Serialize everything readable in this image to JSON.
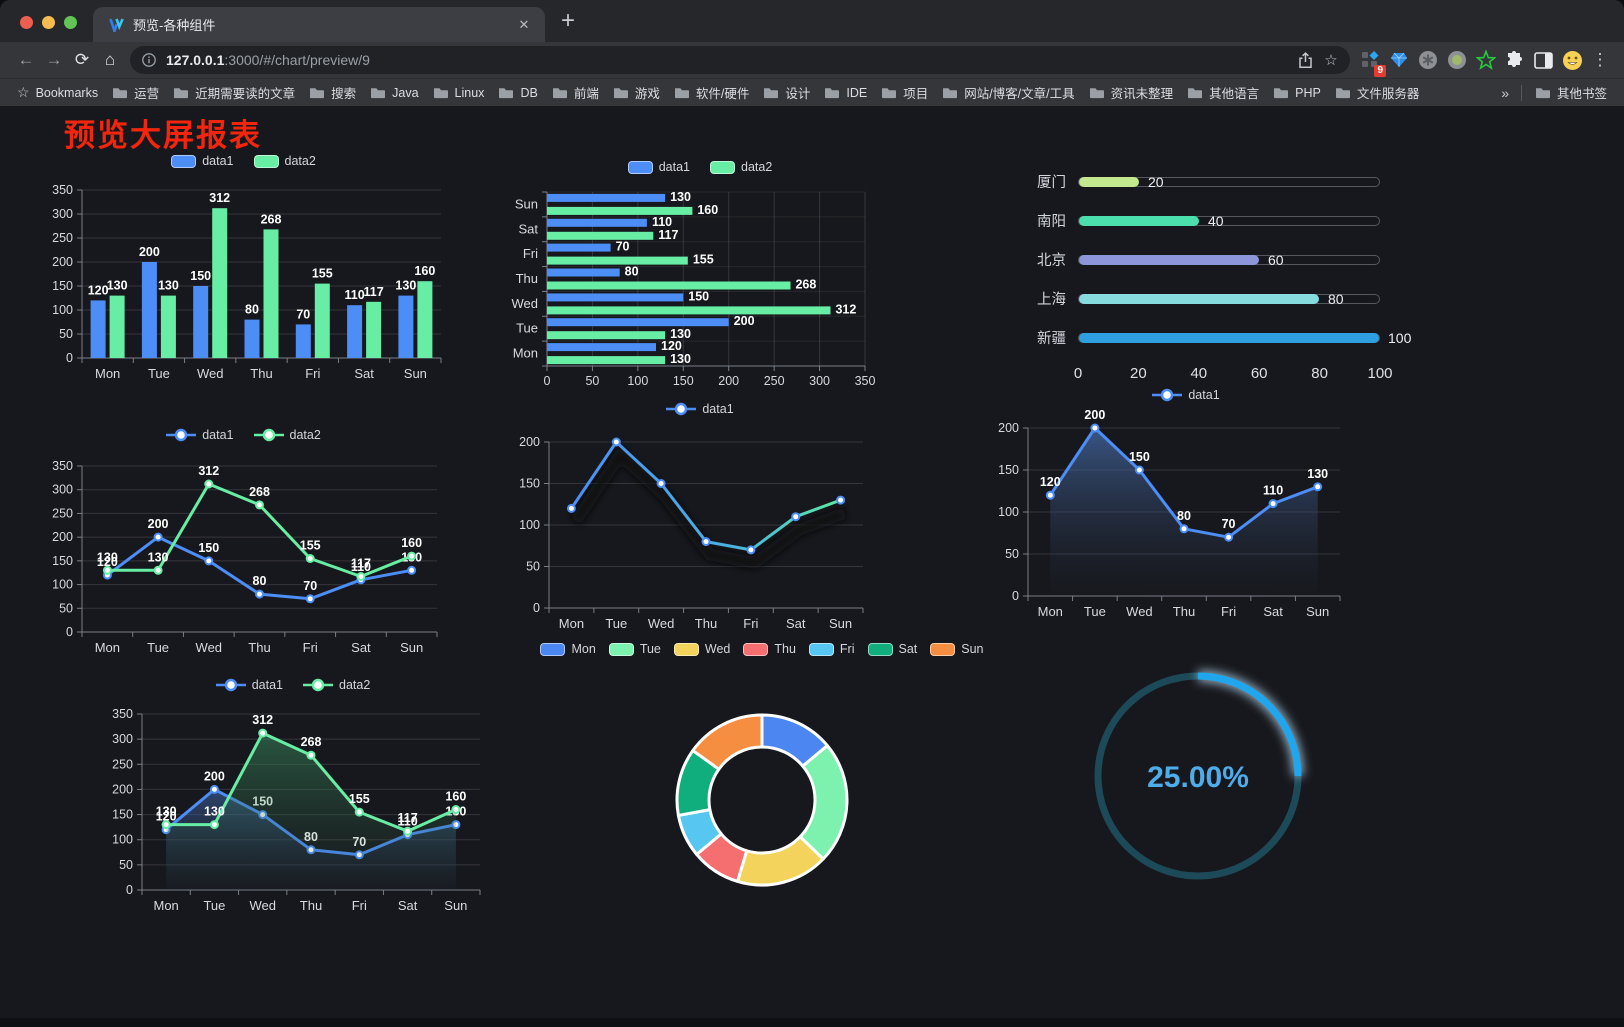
{
  "window": {
    "tab_title": "预览-各种组件",
    "url_host": "127.0.0.1",
    "url_rest": ":3000/#/chart/preview/9",
    "ext_badge": "9",
    "glyphs": {
      "back": "←",
      "forward": "→",
      "reload": "⟳",
      "home": "⌂",
      "close_tab": "✕",
      "new_tab": "+",
      "star": "☆",
      "menu": "⋮",
      "overflow": "»"
    },
    "bookmarks_label": "Bookmarks",
    "bookmarks": [
      "运营",
      "近期需要读的文章",
      "搜索",
      "Java",
      "Linux",
      "DB",
      "前端",
      "游戏",
      "软件/硬件",
      "设计",
      "IDE",
      "项目",
      "网站/博客/文章/工具",
      "资讯未整理",
      "其他语言",
      "PHP",
      "文件服务器"
    ],
    "other_bookmarks": "其他书签"
  },
  "page": {
    "title": "预览大屏报表",
    "title_color": "#f3260d"
  },
  "chart_data": [
    {
      "id": "c1",
      "type": "bar",
      "orientation": "vertical",
      "categories": [
        "Mon",
        "Tue",
        "Wed",
        "Thu",
        "Fri",
        "Sat",
        "Sun"
      ],
      "series": [
        {
          "name": "data1",
          "color": "#4C8DF6",
          "values": [
            120,
            200,
            150,
            80,
            70,
            110,
            130
          ]
        },
        {
          "name": "data2",
          "color": "#67EDA4",
          "values": [
            130,
            130,
            312,
            268,
            155,
            117,
            160
          ]
        }
      ],
      "ylim": [
        0,
        350
      ],
      "yticks": [
        0,
        50,
        100,
        150,
        200,
        250,
        300,
        350
      ],
      "value_labels": true,
      "legend_position": "top",
      "grid": true
    },
    {
      "id": "c2",
      "type": "bar",
      "orientation": "horizontal",
      "categories": [
        "Mon",
        "Tue",
        "Wed",
        "Thu",
        "Fri",
        "Sat",
        "Sun"
      ],
      "category_order_top_to_bottom": [
        "Sun",
        "Sat",
        "Fri",
        "Thu",
        "Wed",
        "Tue",
        "Mon"
      ],
      "series": [
        {
          "name": "data1",
          "color": "#4C8DF6",
          "values": [
            120,
            200,
            150,
            80,
            70,
            110,
            130
          ]
        },
        {
          "name": "data2",
          "color": "#67EDA4",
          "values": [
            130,
            130,
            312,
            268,
            155,
            117,
            160
          ]
        }
      ],
      "xlim": [
        0,
        350
      ],
      "xticks": [
        0,
        50,
        100,
        150,
        200,
        250,
        300,
        350
      ],
      "value_labels": true,
      "legend_position": "top",
      "grid": true
    },
    {
      "id": "c3",
      "type": "bar",
      "subtype": "progress-list",
      "max": 100,
      "xticks": [
        0,
        20,
        40,
        60,
        80,
        100
      ],
      "items": [
        {
          "label": "厦门",
          "value": 20,
          "color": "#C3E88D"
        },
        {
          "label": "南阳",
          "value": 40,
          "color": "#4BDFAD"
        },
        {
          "label": "北京",
          "value": 60,
          "color": "#8E96DB"
        },
        {
          "label": "上海",
          "value": 80,
          "color": "#85DBDE"
        },
        {
          "label": "新疆",
          "value": 100,
          "color": "#2E9FE0"
        }
      ]
    },
    {
      "id": "c4",
      "type": "line",
      "categories": [
        "Mon",
        "Tue",
        "Wed",
        "Thu",
        "Fri",
        "Sat",
        "Sun"
      ],
      "series": [
        {
          "name": "data1",
          "color": "#4C8DF6",
          "values": [
            120,
            200,
            150,
            80,
            70,
            110,
            130
          ]
        },
        {
          "name": "data2",
          "color": "#67EDA4",
          "values": [
            130,
            130,
            312,
            268,
            155,
            117,
            160
          ]
        }
      ],
      "ylim": [
        0,
        350
      ],
      "yticks": [
        0,
        50,
        100,
        150,
        200,
        250,
        300,
        350
      ],
      "value_labels": true,
      "legend_position": "top",
      "grid": true
    },
    {
      "id": "c5",
      "type": "line",
      "categories": [
        "Mon",
        "Tue",
        "Wed",
        "Thu",
        "Fri",
        "Sat",
        "Sun"
      ],
      "series": [
        {
          "name": "data1",
          "color": "#4C8DF6",
          "gradient": [
            "#4C8DF6",
            "#49B3E0",
            "#5CE9A5"
          ],
          "values": [
            120,
            200,
            150,
            80,
            70,
            110,
            130
          ]
        }
      ],
      "ylim": [
        0,
        200
      ],
      "yticks": [
        0,
        50,
        100,
        150,
        200
      ],
      "value_labels": false,
      "shadow": true,
      "legend_position": "top",
      "grid": true
    },
    {
      "id": "c6",
      "type": "area",
      "categories": [
        "Mon",
        "Tue",
        "Wed",
        "Thu",
        "Fri",
        "Sat",
        "Sun"
      ],
      "series": [
        {
          "name": "data1",
          "color": "#4C8DF6",
          "fill_from": "rgba(76,120,190,0.65)",
          "fill_to": "rgba(40,50,70,0.03)",
          "values": [
            120,
            200,
            150,
            80,
            70,
            110,
            130
          ]
        }
      ],
      "ylim": [
        0,
        200
      ],
      "yticks": [
        0,
        50,
        100,
        150,
        200
      ],
      "value_labels": true,
      "legend_position": "top",
      "grid": true
    },
    {
      "id": "c7",
      "type": "area",
      "categories": [
        "Mon",
        "Tue",
        "Wed",
        "Thu",
        "Fri",
        "Sat",
        "Sun"
      ],
      "series": [
        {
          "name": "data1",
          "color": "#4C8DF6",
          "fill_from": "rgba(70,115,190,0.50)",
          "fill_to": "rgba(40,60,100,0.04)",
          "values": [
            120,
            200,
            150,
            80,
            70,
            110,
            130
          ]
        },
        {
          "name": "data2",
          "color": "#67EDA4",
          "fill_from": "rgba(60,150,100,0.50)",
          "fill_to": "rgba(40,80,60,0.04)",
          "values": [
            130,
            130,
            312,
            268,
            155,
            117,
            160
          ]
        }
      ],
      "ylim": [
        0,
        350
      ],
      "yticks": [
        0,
        50,
        100,
        150,
        200,
        250,
        300,
        350
      ],
      "value_labels": true,
      "legend_position": "top",
      "grid": true
    },
    {
      "id": "c8",
      "type": "pie",
      "subtype": "donut",
      "legend_position": "top",
      "slices": [
        {
          "label": "Mon",
          "value": 120,
          "color": "#4C86F0"
        },
        {
          "label": "Tue",
          "value": 200,
          "color": "#7DF2AF"
        },
        {
          "label": "Wed",
          "value": 150,
          "color": "#F3D35B"
        },
        {
          "label": "Thu",
          "value": 80,
          "color": "#F56E70"
        },
        {
          "label": "Fri",
          "value": 70,
          "color": "#57C7F2"
        },
        {
          "label": "Sat",
          "value": 110,
          "color": "#10AD7D"
        },
        {
          "label": "Sun",
          "value": 130,
          "color": "#F68E42"
        }
      ]
    },
    {
      "id": "c9",
      "type": "gauge",
      "value": 25,
      "display": "25.00%",
      "color": "#1FA6EC",
      "track_color": "#1D4A58",
      "text_color": "#4FACEA"
    }
  ]
}
